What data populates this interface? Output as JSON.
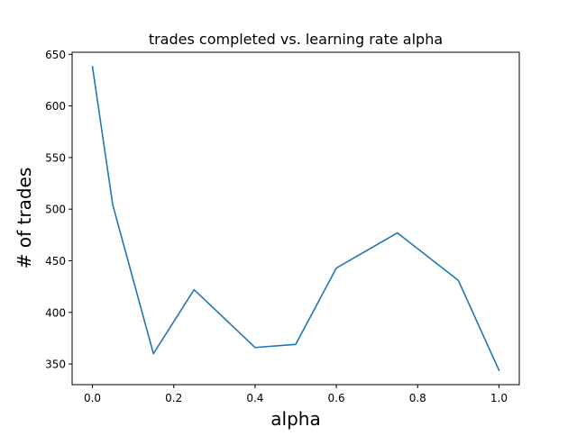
{
  "chart_data": {
    "type": "line",
    "title": "trades completed vs. learning rate alpha",
    "xlabel": "alpha",
    "ylabel": "# of trades",
    "xlim": [
      -0.05,
      1.05
    ],
    "ylim": [
      330,
      652
    ],
    "xticks": [
      0.0,
      0.2,
      0.4,
      0.6,
      0.8,
      1.0
    ],
    "xtick_labels": [
      "0.0",
      "0.2",
      "0.4",
      "0.6",
      "0.8",
      "1.0"
    ],
    "yticks": [
      350,
      400,
      450,
      500,
      550,
      600,
      650
    ],
    "ytick_labels": [
      "350",
      "400",
      "450",
      "500",
      "550",
      "600",
      "650"
    ],
    "grid": false,
    "legend": "none",
    "series": [
      {
        "color": "#1f77b4",
        "x": [
          0.0,
          0.05,
          0.15,
          0.25,
          0.4,
          0.5,
          0.6,
          0.75,
          0.9,
          1.0
        ],
        "y": [
          638,
          504,
          360,
          422,
          366,
          369,
          443,
          477,
          431,
          344
        ]
      }
    ]
  }
}
